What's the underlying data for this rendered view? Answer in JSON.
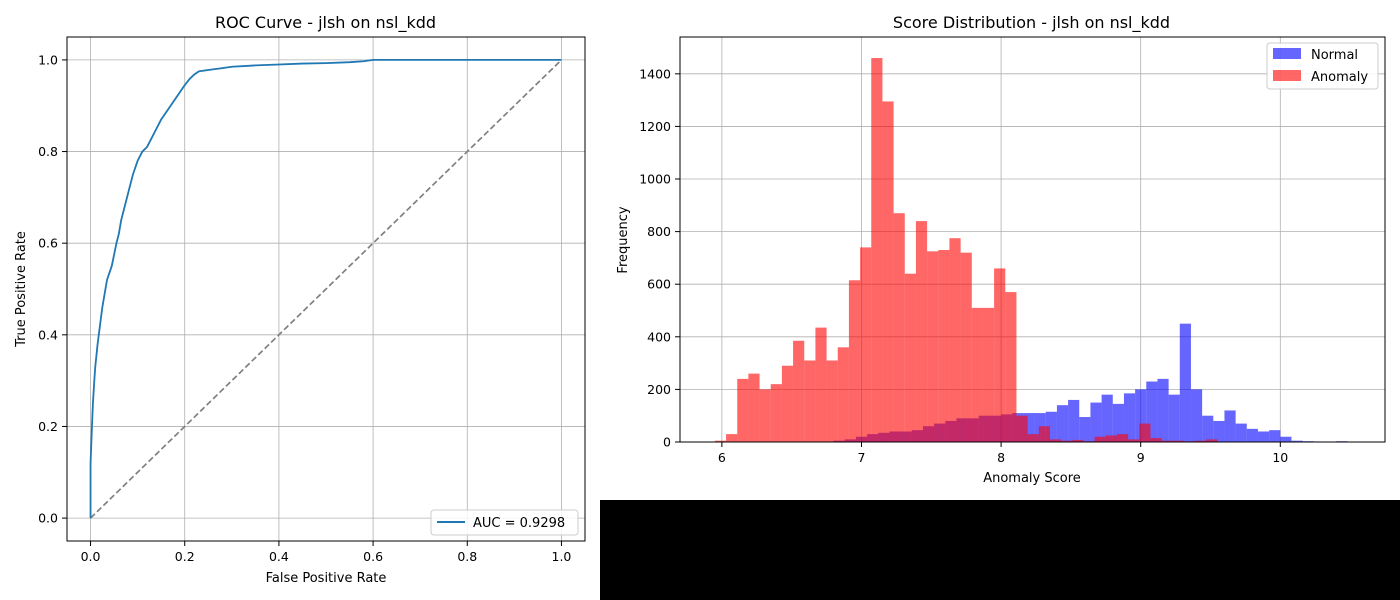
{
  "chart_data": [
    {
      "type": "line",
      "title": "ROC Curve - jlsh on nsl_kdd",
      "xlabel": "False Positive Rate",
      "ylabel": "True Positive Rate",
      "xlim": [
        -0.05,
        1.05
      ],
      "ylim": [
        -0.05,
        1.05
      ],
      "xticks": [
        "0.0",
        "0.2",
        "0.4",
        "0.6",
        "0.8",
        "1.0"
      ],
      "yticks": [
        "0.0",
        "0.2",
        "0.4",
        "0.6",
        "0.8",
        "1.0"
      ],
      "grid": true,
      "legend_position": "lower-right",
      "series": [
        {
          "name": "AUC = 0.9298",
          "color": "#1f77b4",
          "x": [
            0.0,
            0.0,
            0.003,
            0.005,
            0.008,
            0.01,
            0.015,
            0.02,
            0.025,
            0.03,
            0.035,
            0.04,
            0.045,
            0.05,
            0.055,
            0.06,
            0.065,
            0.07,
            0.08,
            0.09,
            0.1,
            0.11,
            0.12,
            0.13,
            0.14,
            0.15,
            0.16,
            0.17,
            0.18,
            0.19,
            0.2,
            0.21,
            0.22,
            0.23,
            0.25,
            0.28,
            0.3,
            0.35,
            0.4,
            0.45,
            0.5,
            0.55,
            0.58,
            0.6,
            0.7,
            0.8,
            0.9,
            1.0
          ],
          "y": [
            0.0,
            0.12,
            0.2,
            0.25,
            0.3,
            0.33,
            0.38,
            0.42,
            0.46,
            0.49,
            0.52,
            0.535,
            0.55,
            0.575,
            0.6,
            0.62,
            0.65,
            0.67,
            0.71,
            0.75,
            0.78,
            0.8,
            0.81,
            0.83,
            0.85,
            0.87,
            0.885,
            0.9,
            0.915,
            0.93,
            0.945,
            0.958,
            0.968,
            0.975,
            0.978,
            0.982,
            0.985,
            0.988,
            0.99,
            0.992,
            0.993,
            0.995,
            0.997,
            1.0,
            1.0,
            1.0,
            1.0,
            1.0
          ]
        },
        {
          "name": "",
          "color": "#808080",
          "style": "dashed",
          "x": [
            0,
            1
          ],
          "y": [
            0,
            1
          ]
        }
      ]
    },
    {
      "type": "bar",
      "subtype": "histogram",
      "title": "Score Distribution - jlsh on nsl_kdd",
      "xlabel": "Anomaly Score",
      "ylabel": "Frequency",
      "xlim": [
        5.7,
        10.75
      ],
      "ylim": [
        0,
        1540
      ],
      "xticks": [
        "6",
        "7",
        "8",
        "9",
        "10"
      ],
      "yticks": [
        "0",
        "200",
        "400",
        "600",
        "800",
        "1000",
        "1200",
        "1400"
      ],
      "grid": true,
      "legend_position": "top-right",
      "series": [
        {
          "name": "Normal",
          "color": "#0000ff",
          "opacity": 0.6,
          "bin_start": [
            6.8,
            6.88,
            6.96,
            7.04,
            7.12,
            7.2,
            7.28,
            7.36,
            7.44,
            7.52,
            7.6,
            7.68,
            7.76,
            7.84,
            7.92,
            8.0,
            8.08,
            8.16,
            8.24,
            8.32,
            8.4,
            8.48,
            8.56,
            8.64,
            8.72,
            8.8,
            8.88,
            8.96,
            9.04,
            9.12,
            9.2,
            9.28,
            9.36,
            9.44,
            9.52,
            9.6,
            9.68,
            9.76,
            9.84,
            9.92,
            10.0,
            10.08,
            10.16,
            10.24,
            10.32,
            10.4,
            10.48
          ],
          "bin_width": 0.08,
          "values": [
            5,
            10,
            20,
            30,
            35,
            40,
            40,
            45,
            60,
            70,
            80,
            90,
            90,
            100,
            100,
            105,
            110,
            110,
            110,
            115,
            140,
            160,
            95,
            150,
            180,
            145,
            185,
            200,
            230,
            240,
            180,
            450,
            200,
            100,
            80,
            120,
            70,
            50,
            40,
            45,
            20,
            5,
            3,
            2,
            1,
            3,
            1
          ]
        },
        {
          "name": "Anomaly",
          "color": "#ff0000",
          "opacity": 0.6,
          "bin_start": [
            5.95,
            6.03,
            6.11,
            6.19,
            6.27,
            6.35,
            6.43,
            6.51,
            6.59,
            6.67,
            6.75,
            6.83,
            6.91,
            6.99,
            7.07,
            7.15,
            7.23,
            7.31,
            7.39,
            7.47,
            7.55,
            7.63,
            7.71,
            7.79,
            7.87,
            7.95,
            8.03,
            8.11,
            8.19,
            8.27,
            8.35,
            8.43,
            8.51,
            8.59,
            8.67,
            8.75,
            8.83,
            8.91,
            8.99,
            9.07,
            9.15,
            9.23,
            9.31,
            9.39,
            9.47,
            9.55
          ],
          "bin_width": 0.08,
          "values": [
            5,
            30,
            240,
            260,
            200,
            220,
            290,
            385,
            310,
            435,
            310,
            360,
            615,
            740,
            1460,
            1295,
            870,
            640,
            840,
            725,
            730,
            775,
            720,
            510,
            510,
            660,
            570,
            100,
            30,
            60,
            10,
            5,
            8,
            3,
            20,
            25,
            30,
            10,
            70,
            15,
            5,
            5,
            3,
            5,
            10,
            2
          ]
        }
      ]
    }
  ]
}
